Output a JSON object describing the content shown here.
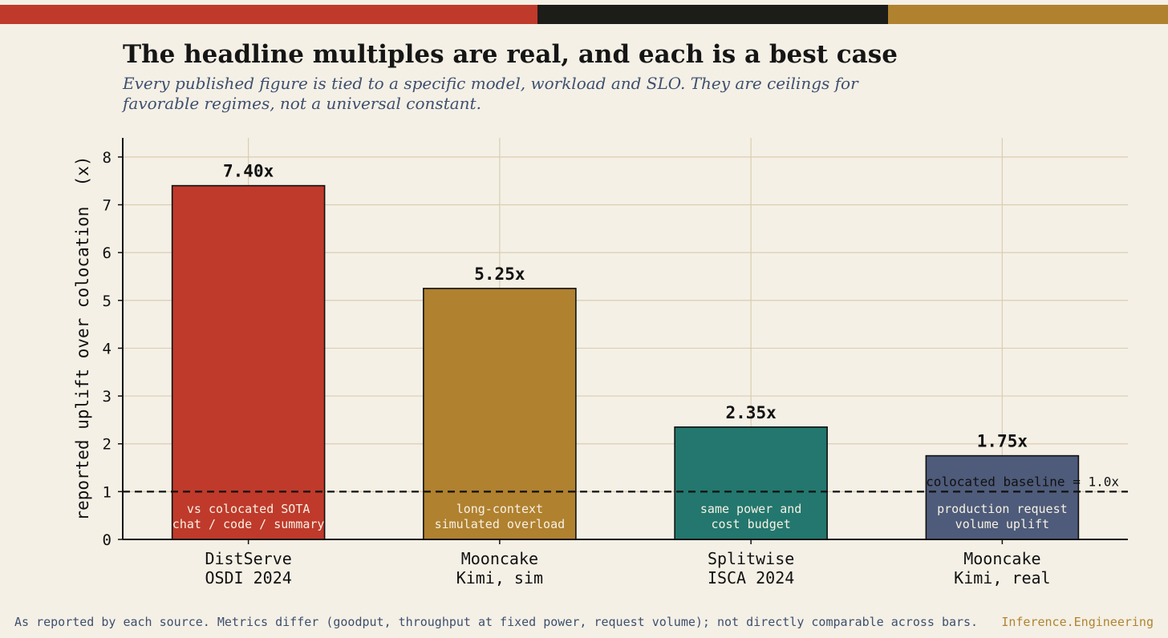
{
  "header": {
    "title": "The headline multiples are real, and each is a best case",
    "subtitle": "Every published figure is tied to a specific model, workload and SLO. They are ceilings for favorable regimes, not a universal constant."
  },
  "footer": {
    "note": "As reported by each source. Metrics differ (goodput, throughput at fixed power, request volume); not directly comparable across bars.",
    "brand": "Inference.Engineering"
  },
  "colors": {
    "background": "#f4f0e6",
    "red": "#bf3a2b",
    "dark": "#1c1c18",
    "gold": "#b0812f",
    "teal": "#23776e",
    "slate": "#4e5b7a",
    "grid": "#dccdb0",
    "muted_text": "#3e4f6e"
  },
  "chart_data": {
    "type": "bar",
    "title": "The headline multiples are real, and each is a best case",
    "subtitle": "Every published figure is tied to a specific model, workload and SLO. They are ceilings for favorable regimes, not a universal constant.",
    "xlabel": "",
    "ylabel": "reported uplift over colocation  (x)",
    "ylim": [
      0,
      8.4
    ],
    "yticks": [
      0,
      1,
      2,
      3,
      4,
      5,
      6,
      7,
      8
    ],
    "grid": true,
    "categories": [
      [
        "DistServe",
        "OSDI 2024"
      ],
      [
        "Mooncake",
        "Kimi, sim"
      ],
      [
        "Splitwise",
        "ISCA 2024"
      ],
      [
        "Mooncake",
        "Kimi, real"
      ]
    ],
    "values": [
      7.4,
      5.25,
      2.35,
      1.75
    ],
    "value_labels": [
      "7.40x",
      "5.25x",
      "2.35x",
      "1.75x"
    ],
    "bar_notes": [
      [
        "vs colocated SOTA",
        "chat / code / summary"
      ],
      [
        "long-context",
        "simulated overload"
      ],
      [
        "same power and",
        "cost budget"
      ],
      [
        "production request",
        "volume uplift"
      ]
    ],
    "bar_colors": [
      "#bf3a2b",
      "#b0812f",
      "#23776e",
      "#4e5b7a"
    ],
    "baseline": {
      "value": 1.0,
      "label": "colocated baseline = 1.0x"
    }
  }
}
